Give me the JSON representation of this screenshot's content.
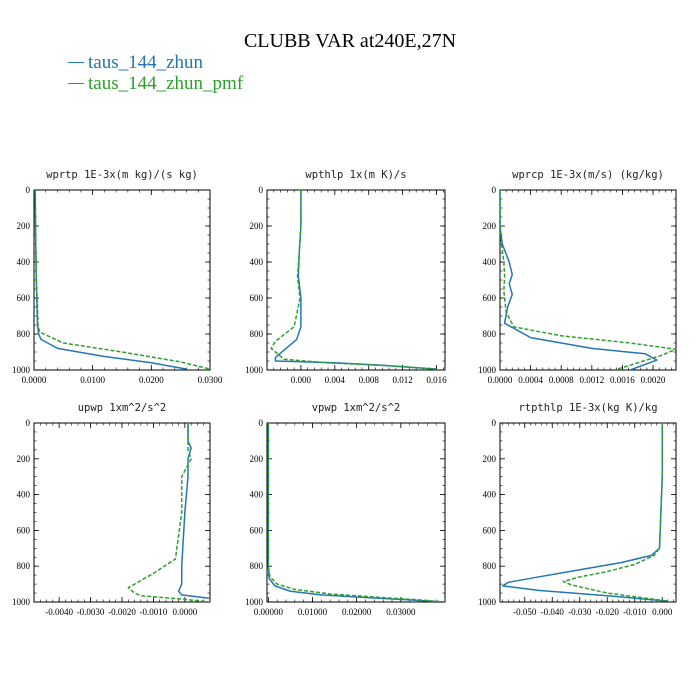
{
  "title": "CLUBB VAR at240E,27N",
  "legend": [
    {
      "label": "taus_144_zhun",
      "color": "#2277b4"
    },
    {
      "label": "taus_144_zhun_pmf",
      "color": "#2ca02c"
    }
  ],
  "chart_data": [
    {
      "type": "line",
      "title": "wprtp  1E-3x(m kg)/(s kg)",
      "xlim": [
        0,
        0.03
      ],
      "ylim": [
        1000,
        0
      ],
      "xticks": [
        0,
        0.01,
        0.02,
        0.03
      ],
      "xtick_labels": [
        "0.0000",
        "0.0100",
        "0.0200",
        "0.0300"
      ],
      "yticks": [
        0,
        200,
        400,
        600,
        800,
        1000
      ],
      "series": [
        {
          "name": "taus_144_zhun",
          "x": [
            0.0002,
            0.0003,
            0.0004,
            0.0005,
            0.0006,
            0.0008,
            0.0012,
            0.004,
            0.012,
            0.02,
            0.026
          ],
          "y": [
            0,
            300,
            500,
            650,
            750,
            800,
            830,
            880,
            925,
            960,
            995
          ]
        },
        {
          "name": "taus_144_zhun_pmf",
          "x": [
            0.0002,
            0.0003,
            0.0004,
            0.0006,
            0.0007,
            0.001,
            0.005,
            0.015,
            0.025,
            0.03
          ],
          "y": [
            0,
            300,
            500,
            650,
            760,
            790,
            850,
            900,
            955,
            995
          ]
        }
      ]
    },
    {
      "type": "line",
      "title": "wpthlp  1x(m K)/s",
      "xlim": [
        -0.004,
        0.017
      ],
      "ylim": [
        1000,
        0
      ],
      "xticks": [
        0,
        0.004,
        0.008,
        0.012,
        0.016
      ],
      "xtick_labels": [
        "0.000",
        "0.004",
        "0.008",
        "0.012",
        "0.016"
      ],
      "yticks": [
        0,
        200,
        400,
        600,
        800,
        1000
      ],
      "series": [
        {
          "name": "taus_144_zhun",
          "x": [
            0,
            0,
            -0.0002,
            -0.0003,
            0,
            0,
            -0.0005,
            -0.002,
            -0.003,
            -0.003,
            0.004,
            0.01,
            0.016
          ],
          "y": [
            0,
            200,
            350,
            480,
            600,
            760,
            830,
            890,
            930,
            950,
            960,
            975,
            995
          ]
        },
        {
          "name": "taus_144_zhun_pmf",
          "x": [
            0,
            0,
            -0.0002,
            -0.0004,
            -0.0001,
            -0.0008,
            -0.003,
            -0.0035,
            -0.002,
            0.003,
            0.01,
            0.016
          ],
          "y": [
            0,
            200,
            350,
            480,
            600,
            760,
            840,
            880,
            940,
            960,
            975,
            995
          ]
        }
      ]
    },
    {
      "type": "line",
      "title": "wprcp  1E-3x(m/s) (kg/kg)",
      "xlim": [
        0,
        0.0023
      ],
      "ylim": [
        1000,
        0
      ],
      "xticks": [
        0,
        0.0004,
        0.0008,
        0.0012,
        0.0016,
        0.002
      ],
      "xtick_labels": [
        "0.0000",
        "0.0004",
        "0.0008",
        "0.0012",
        "0.0016",
        "0.0020"
      ],
      "yticks": [
        0,
        200,
        400,
        600,
        800,
        1000
      ],
      "series": [
        {
          "name": "taus_144_zhun",
          "x": [
            0,
            0,
            3e-05,
            0.00012,
            0.00016,
            0.00012,
            0.00016,
            0.0001,
            6e-05,
            0.0004,
            0.0012,
            0.0019,
            0.00205,
            0.0017
          ],
          "y": [
            0,
            200,
            300,
            400,
            470,
            520,
            580,
            650,
            740,
            820,
            880,
            910,
            945,
            1000
          ]
        },
        {
          "name": "taus_144_zhun_pmf",
          "x": [
            0,
            0,
            2e-05,
            5e-05,
            6e-05,
            5e-05,
            8e-05,
            0.00018,
            0.0008,
            0.0017,
            0.0023,
            0.0021,
            0.0015
          ],
          "y": [
            0,
            200,
            300,
            400,
            480,
            560,
            680,
            760,
            810,
            850,
            885,
            920,
            1000
          ]
        }
      ]
    },
    {
      "type": "line",
      "title": "upwp  1xm^2/s^2",
      "xlim": [
        -0.0048,
        0.0008
      ],
      "ylim": [
        1000,
        0
      ],
      "xticks": [
        -0.004,
        -0.003,
        -0.002,
        -0.001,
        0
      ],
      "xtick_labels": [
        "-0.0040",
        "-0.0030",
        "-0.0020",
        "-0.0010",
        "0.0000"
      ],
      "yticks": [
        0,
        200,
        400,
        600,
        800,
        1000
      ],
      "series": [
        {
          "name": "taus_144_zhun",
          "x": [
            0.0001,
            0.0001,
            0.0002,
            0.0001,
            0.0001,
            0,
            -0.0001,
            -0.0001,
            -0.0002,
            -0.0001,
            0.0008,
            0.0008
          ],
          "y": [
            0,
            100,
            140,
            200,
            300,
            500,
            800,
            900,
            940,
            960,
            980,
            1000
          ]
        },
        {
          "name": "taus_144_zhun_pmf",
          "x": [
            0.0001,
            0.0001,
            0.0001,
            0.0002,
            -0.0001,
            -0.0001,
            -0.0003,
            -0.001,
            -0.0018,
            -0.0016,
            -0.0014,
            0,
            0.0008
          ],
          "y": [
            0,
            100,
            150,
            200,
            300,
            500,
            760,
            840,
            920,
            950,
            965,
            985,
            1000
          ]
        }
      ]
    },
    {
      "type": "line",
      "title": "vpwp  1xm^2/s^2",
      "xlim": [
        -0.0003,
        0.04
      ],
      "ylim": [
        1000,
        0
      ],
      "xticks": [
        0,
        0.01,
        0.02,
        0.03
      ],
      "xtick_labels": [
        "0.00000",
        "0.01000",
        "0.02000",
        "0.03000"
      ],
      "yticks": [
        0,
        200,
        400,
        600,
        800,
        1000
      ],
      "series": [
        {
          "name": "taus_144_zhun",
          "x": [
            0,
            0,
            0,
            0.0002,
            0.0015,
            0.005,
            0.012,
            0.022,
            0.032,
            0.04
          ],
          "y": [
            0,
            400,
            800,
            870,
            910,
            940,
            960,
            975,
            988,
            1000
          ]
        },
        {
          "name": "taus_144_zhun_pmf",
          "x": [
            0,
            0,
            0,
            0.0004,
            0.002,
            0.006,
            0.014,
            0.024,
            0.033,
            0.04
          ],
          "y": [
            0,
            400,
            800,
            860,
            900,
            930,
            955,
            972,
            986,
            1000
          ]
        }
      ]
    },
    {
      "type": "line",
      "title": "rtpthlp  1E-3x(kg K)/kg",
      "xlim": [
        -0.059,
        0.005
      ],
      "ylim": [
        1000,
        0
      ],
      "xticks": [
        -0.05,
        -0.04,
        -0.03,
        -0.02,
        -0.01,
        0
      ],
      "xtick_labels": [
        "-0.050",
        "-0.040",
        "-0.030",
        "-0.020",
        "-0.010",
        "0.000"
      ],
      "yticks": [
        0,
        200,
        400,
        600,
        800,
        1000
      ],
      "series": [
        {
          "name": "taus_144_zhun",
          "x": [
            0,
            0,
            -0.0005,
            -0.001,
            -0.004,
            -0.015,
            -0.03,
            -0.045,
            -0.056,
            -0.058,
            -0.045,
            -0.02,
            0.002
          ],
          "y": [
            0,
            300,
            500,
            700,
            740,
            780,
            820,
            860,
            890,
            910,
            935,
            965,
            995
          ]
        },
        {
          "name": "taus_144_zhun_pmf",
          "x": [
            0,
            0,
            -0.0005,
            -0.001,
            -0.003,
            -0.01,
            -0.02,
            -0.03,
            -0.036,
            -0.033,
            -0.02,
            0.002
          ],
          "y": [
            0,
            300,
            500,
            700,
            740,
            790,
            830,
            860,
            885,
            905,
            950,
            995
          ]
        }
      ]
    }
  ]
}
